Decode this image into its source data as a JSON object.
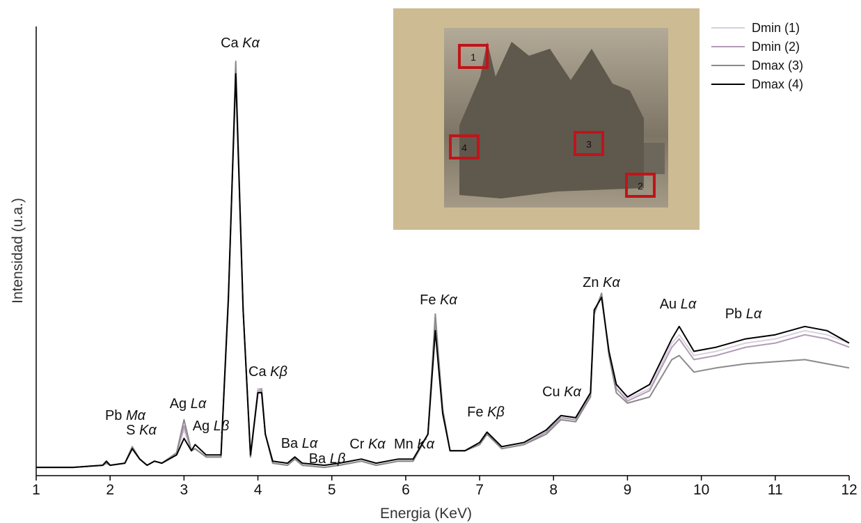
{
  "chart_data": {
    "type": "line",
    "x_label": "Energia (KeV)",
    "y_label": "Intensidad (u.a.)",
    "xlim": [
      1,
      12
    ],
    "xticks": [
      1,
      2,
      3,
      4,
      5,
      6,
      7,
      8,
      9,
      10,
      11,
      12
    ],
    "ylim": [
      0,
      100
    ],
    "x": [
      1.0,
      1.5,
      1.9,
      1.95,
      2.0,
      2.2,
      2.3,
      2.4,
      2.5,
      2.6,
      2.7,
      2.9,
      3.0,
      3.1,
      3.15,
      3.3,
      3.5,
      3.6,
      3.7,
      3.8,
      3.9,
      4.0,
      4.05,
      4.1,
      4.2,
      4.4,
      4.5,
      4.6,
      4.9,
      5.1,
      5.4,
      5.6,
      5.9,
      6.1,
      6.3,
      6.4,
      6.5,
      6.6,
      6.8,
      7.0,
      7.1,
      7.3,
      7.6,
      7.9,
      8.1,
      8.3,
      8.5,
      8.55,
      8.65,
      8.75,
      8.85,
      9.0,
      9.3,
      9.6,
      9.7,
      9.9,
      10.2,
      10.6,
      11.0,
      11.4,
      11.7,
      12.0
    ],
    "series": [
      {
        "name": "Dmin (1)",
        "color": "#d8d0dc",
        "values": [
          2,
          2,
          2.5,
          3,
          2.5,
          3,
          6.5,
          4,
          2.5,
          3.5,
          3,
          5.5,
          11,
          6,
          6.5,
          4.5,
          4.5,
          42,
          98,
          40,
          4.5,
          21,
          21,
          10,
          3,
          2.5,
          4,
          2.5,
          2,
          2.5,
          3.5,
          2.5,
          3.5,
          3.5,
          10,
          37,
          16,
          6,
          6,
          7.5,
          10,
          6.5,
          7.5,
          10.5,
          14,
          13.5,
          19.5,
          39.5,
          44,
          29.5,
          21,
          18.5,
          21,
          32,
          34,
          29,
          30,
          32,
          33,
          35,
          34,
          32
        ]
      },
      {
        "name": "Dmin (2)",
        "color": "#b29bb6",
        "values": [
          2,
          2,
          2.5,
          3,
          2.5,
          3,
          7,
          4,
          2.5,
          3.5,
          3,
          5.5,
          12,
          6,
          6.5,
          4.5,
          4.5,
          42,
          98,
          40,
          4.5,
          20.5,
          21,
          10,
          3,
          2.5,
          4,
          2.5,
          2,
          2.5,
          3.5,
          2.5,
          3.5,
          3.5,
          10,
          37.5,
          16,
          6,
          6,
          7.5,
          10,
          6.5,
          7.5,
          10.5,
          14,
          13.5,
          19.5,
          39.5,
          43.5,
          29.5,
          21,
          18,
          20.5,
          31,
          33,
          28,
          29,
          31,
          32,
          34,
          33,
          31
        ]
      },
      {
        "name": "Dmax (3)",
        "color": "#8a8a8a",
        "values": [
          2,
          2,
          2.5,
          3,
          2.5,
          3,
          7,
          4,
          2.5,
          3.5,
          3,
          5.5,
          13.5,
          6,
          6.5,
          4.5,
          4.5,
          42,
          100,
          40,
          4.5,
          20,
          20.5,
          10,
          3,
          2.5,
          4,
          2.5,
          2,
          2.5,
          3.5,
          2.5,
          3.5,
          3.5,
          10,
          39,
          16,
          6,
          6,
          7.5,
          10,
          6.5,
          7.5,
          10,
          13.5,
          13,
          19,
          39,
          44,
          29,
          20,
          17.5,
          19,
          28,
          29,
          25,
          26,
          27,
          27.5,
          28,
          27,
          26
        ]
      },
      {
        "name": "Dmax (4)",
        "color": "#000000",
        "values": [
          2,
          2,
          2.5,
          3.5,
          2.5,
          3,
          6.5,
          4,
          2.5,
          3.5,
          3,
          5,
          9,
          6,
          7.5,
          5,
          5,
          43,
          97,
          40,
          5,
          20,
          20,
          10,
          3.5,
          3,
          4.5,
          3,
          2.5,
          3,
          4,
          3,
          4,
          4,
          10,
          35,
          15,
          6,
          6,
          8,
          10.5,
          7,
          8,
          11,
          14.5,
          14,
          20,
          40,
          43,
          30,
          22,
          19,
          22,
          33,
          36,
          30,
          31,
          33,
          34,
          36,
          35,
          32
        ]
      }
    ],
    "annotations": [
      "Ca Kα",
      "Pb Mα",
      "S Kα",
      "Ag Lα",
      "Ag Lβ",
      "Ca Kβ",
      "Ba Lα",
      "Ba Lβ",
      "Cr Kα",
      "Mn Kα",
      "Fe Kα",
      "Fe Kβ",
      "Cu Kα",
      "Zn Kα",
      "Au Lα",
      "Pb Lα"
    ],
    "inset_labels": [
      "1",
      "2",
      "3",
      "4"
    ]
  }
}
